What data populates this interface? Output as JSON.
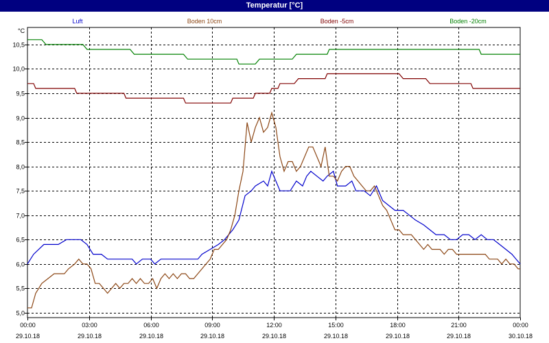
{
  "window": {
    "title": "Temperatur [°C]"
  },
  "colors": {
    "titlebar": "#000080",
    "grid": "#000000",
    "Luft": "#0000cc",
    "Boden 10cm": "#8b4513",
    "Boden -5cm": "#800000",
    "Boden -20cm": "#008000"
  },
  "chart_data": {
    "type": "line",
    "title": "Temperatur [°C]",
    "ylabel": "°C",
    "xlabel": "",
    "ylim": [
      4.9,
      10.85
    ],
    "xlim": [
      0,
      24
    ],
    "grid": true,
    "legend_position": "top",
    "y_ticks": [
      "5,0",
      "5,5",
      "6,0",
      "6,5",
      "7,0",
      "7,5",
      "8,0",
      "8,5",
      "9,0",
      "9,5",
      "10,0",
      "10,5"
    ],
    "x_ticks": [
      {
        "time": "00:00",
        "date": "29.10.18"
      },
      {
        "time": "03:00",
        "date": "29.10.18"
      },
      {
        "time": "06:00",
        "date": "29.10.18"
      },
      {
        "time": "09:00",
        "date": "29.10.18"
      },
      {
        "time": "12:00",
        "date": "29.10.18"
      },
      {
        "time": "15:00",
        "date": "29.10.18"
      },
      {
        "time": "18:00",
        "date": "29.10.18"
      },
      {
        "time": "21:00",
        "date": "29.10.18"
      },
      {
        "time": "00:00",
        "date": "30.10.18"
      }
    ],
    "series": [
      {
        "name": "Luft",
        "color": "#0000cc",
        "values": [
          [
            0,
            6.0
          ],
          [
            0.3,
            6.2
          ],
          [
            0.8,
            6.4
          ],
          [
            1.5,
            6.4
          ],
          [
            1.9,
            6.5
          ],
          [
            2.6,
            6.5
          ],
          [
            2.9,
            6.4
          ],
          [
            3.2,
            6.2
          ],
          [
            3.6,
            6.2
          ],
          [
            3.9,
            6.1
          ],
          [
            4.3,
            6.1
          ],
          [
            5.1,
            6.1
          ],
          [
            5.3,
            6.0
          ],
          [
            5.6,
            6.1
          ],
          [
            6.0,
            6.1
          ],
          [
            6.2,
            6.0
          ],
          [
            6.5,
            6.1
          ],
          [
            6.8,
            6.1
          ],
          [
            7.0,
            6.1
          ],
          [
            8.3,
            6.1
          ],
          [
            8.5,
            6.2
          ],
          [
            8.9,
            6.3
          ],
          [
            9.3,
            6.4
          ],
          [
            9.6,
            6.5
          ],
          [
            10.0,
            6.7
          ],
          [
            10.3,
            6.9
          ],
          [
            10.6,
            7.4
          ],
          [
            10.9,
            7.5
          ],
          [
            11.1,
            7.6
          ],
          [
            11.5,
            7.7
          ],
          [
            11.7,
            7.6
          ],
          [
            11.9,
            7.9
          ],
          [
            12.1,
            7.7
          ],
          [
            12.3,
            7.5
          ],
          [
            12.8,
            7.5
          ],
          [
            13.1,
            7.7
          ],
          [
            13.4,
            7.6
          ],
          [
            13.6,
            7.8
          ],
          [
            13.8,
            7.9
          ],
          [
            14.1,
            7.8
          ],
          [
            14.4,
            7.7
          ],
          [
            14.6,
            7.8
          ],
          [
            14.9,
            7.9
          ],
          [
            15.1,
            7.6
          ],
          [
            15.5,
            7.6
          ],
          [
            15.8,
            7.7
          ],
          [
            16.0,
            7.5
          ],
          [
            16.4,
            7.5
          ],
          [
            16.7,
            7.4
          ],
          [
            17.0,
            7.6
          ],
          [
            17.3,
            7.3
          ],
          [
            17.6,
            7.2
          ],
          [
            17.9,
            7.1
          ],
          [
            18.3,
            7.1
          ],
          [
            18.6,
            7.0
          ],
          [
            18.9,
            6.9
          ],
          [
            19.3,
            6.8
          ],
          [
            19.6,
            6.7
          ],
          [
            19.9,
            6.6
          ],
          [
            20.3,
            6.6
          ],
          [
            20.6,
            6.5
          ],
          [
            20.9,
            6.5
          ],
          [
            21.2,
            6.6
          ],
          [
            21.5,
            6.6
          ],
          [
            21.8,
            6.5
          ],
          [
            22.1,
            6.6
          ],
          [
            22.4,
            6.5
          ],
          [
            22.7,
            6.5
          ],
          [
            23.0,
            6.4
          ],
          [
            23.3,
            6.3
          ],
          [
            23.6,
            6.2
          ],
          [
            23.8,
            6.1
          ],
          [
            24.0,
            6.0
          ]
        ]
      },
      {
        "name": "Boden 10cm",
        "color": "#8b4513",
        "values": [
          [
            0,
            5.1
          ],
          [
            0.2,
            5.1
          ],
          [
            0.4,
            5.4
          ],
          [
            0.7,
            5.6
          ],
          [
            1.0,
            5.7
          ],
          [
            1.3,
            5.8
          ],
          [
            1.6,
            5.8
          ],
          [
            1.8,
            5.8
          ],
          [
            2.0,
            5.9
          ],
          [
            2.3,
            6.0
          ],
          [
            2.5,
            6.1
          ],
          [
            2.7,
            6.0
          ],
          [
            2.9,
            6.0
          ],
          [
            3.1,
            5.9
          ],
          [
            3.3,
            5.6
          ],
          [
            3.5,
            5.6
          ],
          [
            3.7,
            5.5
          ],
          [
            3.9,
            5.4
          ],
          [
            4.1,
            5.5
          ],
          [
            4.3,
            5.6
          ],
          [
            4.5,
            5.5
          ],
          [
            4.7,
            5.6
          ],
          [
            4.9,
            5.6
          ],
          [
            5.1,
            5.7
          ],
          [
            5.3,
            5.6
          ],
          [
            5.5,
            5.7
          ],
          [
            5.7,
            5.6
          ],
          [
            5.9,
            5.6
          ],
          [
            6.1,
            5.7
          ],
          [
            6.3,
            5.5
          ],
          [
            6.5,
            5.7
          ],
          [
            6.7,
            5.8
          ],
          [
            6.9,
            5.7
          ],
          [
            7.1,
            5.8
          ],
          [
            7.3,
            5.7
          ],
          [
            7.5,
            5.8
          ],
          [
            7.7,
            5.8
          ],
          [
            7.9,
            5.7
          ],
          [
            8.1,
            5.7
          ],
          [
            8.3,
            5.8
          ],
          [
            8.5,
            5.9
          ],
          [
            8.7,
            6.0
          ],
          [
            8.9,
            6.1
          ],
          [
            9.1,
            6.3
          ],
          [
            9.3,
            6.3
          ],
          [
            9.5,
            6.4
          ],
          [
            9.7,
            6.5
          ],
          [
            9.9,
            6.7
          ],
          [
            10.1,
            7.0
          ],
          [
            10.3,
            7.5
          ],
          [
            10.5,
            7.9
          ],
          [
            10.7,
            8.9
          ],
          [
            10.9,
            8.5
          ],
          [
            11.1,
            8.8
          ],
          [
            11.3,
            9.0
          ],
          [
            11.5,
            8.7
          ],
          [
            11.7,
            8.8
          ],
          [
            11.9,
            9.1
          ],
          [
            12.1,
            8.8
          ],
          [
            12.3,
            8.2
          ],
          [
            12.5,
            7.9
          ],
          [
            12.7,
            8.1
          ],
          [
            12.9,
            8.1
          ],
          [
            13.1,
            7.9
          ],
          [
            13.3,
            8.0
          ],
          [
            13.5,
            8.2
          ],
          [
            13.7,
            8.4
          ],
          [
            13.9,
            8.4
          ],
          [
            14.1,
            8.2
          ],
          [
            14.3,
            8.0
          ],
          [
            14.5,
            8.4
          ],
          [
            14.7,
            7.8
          ],
          [
            14.9,
            7.8
          ],
          [
            15.1,
            7.7
          ],
          [
            15.3,
            7.9
          ],
          [
            15.5,
            8.0
          ],
          [
            15.7,
            8.0
          ],
          [
            15.9,
            7.8
          ],
          [
            16.1,
            7.7
          ],
          [
            16.3,
            7.6
          ],
          [
            16.5,
            7.5
          ],
          [
            16.7,
            7.5
          ],
          [
            16.9,
            7.6
          ],
          [
            17.1,
            7.4
          ],
          [
            17.3,
            7.2
          ],
          [
            17.5,
            7.1
          ],
          [
            17.7,
            6.9
          ],
          [
            17.9,
            6.7
          ],
          [
            18.1,
            6.7
          ],
          [
            18.3,
            6.6
          ],
          [
            18.5,
            6.6
          ],
          [
            18.7,
            6.6
          ],
          [
            18.9,
            6.5
          ],
          [
            19.1,
            6.4
          ],
          [
            19.3,
            6.3
          ],
          [
            19.5,
            6.4
          ],
          [
            19.7,
            6.3
          ],
          [
            19.9,
            6.3
          ],
          [
            20.1,
            6.3
          ],
          [
            20.3,
            6.2
          ],
          [
            20.5,
            6.3
          ],
          [
            20.7,
            6.3
          ],
          [
            20.9,
            6.2
          ],
          [
            21.1,
            6.2
          ],
          [
            21.3,
            6.2
          ],
          [
            21.5,
            6.2
          ],
          [
            21.7,
            6.2
          ],
          [
            21.9,
            6.2
          ],
          [
            22.1,
            6.2
          ],
          [
            22.3,
            6.2
          ],
          [
            22.5,
            6.1
          ],
          [
            22.7,
            6.1
          ],
          [
            22.9,
            6.1
          ],
          [
            23.1,
            6.0
          ],
          [
            23.3,
            6.1
          ],
          [
            23.5,
            6.0
          ],
          [
            23.7,
            6.0
          ],
          [
            23.9,
            5.9
          ],
          [
            24.0,
            5.9
          ]
        ]
      },
      {
        "name": "Boden -5cm",
        "color": "#800000",
        "values": [
          [
            0,
            9.7
          ],
          [
            0.3,
            9.7
          ],
          [
            0.4,
            9.6
          ],
          [
            2.3,
            9.6
          ],
          [
            2.4,
            9.5
          ],
          [
            4.7,
            9.5
          ],
          [
            4.8,
            9.4
          ],
          [
            7.6,
            9.4
          ],
          [
            7.7,
            9.3
          ],
          [
            9.9,
            9.3
          ],
          [
            10.0,
            9.4
          ],
          [
            11.0,
            9.4
          ],
          [
            11.1,
            9.5
          ],
          [
            11.8,
            9.5
          ],
          [
            11.9,
            9.6
          ],
          [
            12.2,
            9.6
          ],
          [
            12.3,
            9.7
          ],
          [
            13.0,
            9.7
          ],
          [
            13.2,
            9.8
          ],
          [
            14.5,
            9.8
          ],
          [
            14.6,
            9.9
          ],
          [
            18.1,
            9.9
          ],
          [
            18.3,
            9.8
          ],
          [
            19.4,
            9.8
          ],
          [
            19.6,
            9.7
          ],
          [
            21.6,
            9.7
          ],
          [
            21.7,
            9.6
          ],
          [
            24.0,
            9.6
          ]
        ]
      },
      {
        "name": "Boden -20cm",
        "color": "#008000",
        "values": [
          [
            0,
            10.6
          ],
          [
            0.7,
            10.6
          ],
          [
            0.9,
            10.5
          ],
          [
            2.7,
            10.5
          ],
          [
            2.9,
            10.4
          ],
          [
            5.0,
            10.4
          ],
          [
            5.2,
            10.3
          ],
          [
            7.6,
            10.3
          ],
          [
            7.8,
            10.2
          ],
          [
            10.2,
            10.2
          ],
          [
            10.3,
            10.1
          ],
          [
            11.1,
            10.1
          ],
          [
            11.3,
            10.2
          ],
          [
            12.9,
            10.2
          ],
          [
            13.1,
            10.3
          ],
          [
            14.6,
            10.3
          ],
          [
            14.7,
            10.4
          ],
          [
            22.0,
            10.4
          ],
          [
            22.1,
            10.3
          ],
          [
            24.0,
            10.3
          ]
        ]
      }
    ]
  }
}
